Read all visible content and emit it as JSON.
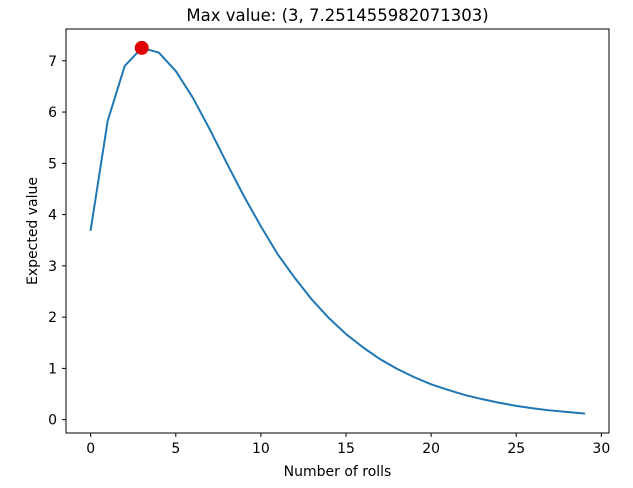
{
  "chart_data": {
    "type": "line",
    "title": "Max value: (3, 7.251455982071303)",
    "xlabel": "Number of rolls",
    "ylabel": "Expected value",
    "xlim": [
      -1.45,
      30.45
    ],
    "ylim": [
      -0.26,
      7.62
    ],
    "xticks": [
      0,
      5,
      10,
      15,
      20,
      25,
      30
    ],
    "xtick_labels": [
      "0",
      "5",
      "10",
      "15",
      "20",
      "25",
      "30"
    ],
    "yticks": [
      0,
      1,
      2,
      3,
      4,
      5,
      6,
      7
    ],
    "ytick_labels": [
      "0",
      "1",
      "2",
      "3",
      "4",
      "5",
      "6",
      "7"
    ],
    "grid": false,
    "series": [
      {
        "color": "#1f77b4",
        "x": [
          0,
          1,
          2,
          3,
          4,
          5,
          6,
          7,
          8,
          9,
          10,
          11,
          12,
          13,
          14,
          15,
          16,
          17,
          18,
          19,
          20,
          21,
          22,
          23,
          24,
          25,
          26,
          27,
          28,
          29
        ],
        "values": [
          3.7,
          5.83,
          6.9,
          7.25,
          7.16,
          6.8,
          6.28,
          5.66,
          5.0,
          4.36,
          3.77,
          3.22,
          2.76,
          2.34,
          1.98,
          1.67,
          1.41,
          1.18,
          0.99,
          0.83,
          0.69,
          0.58,
          0.48,
          0.4,
          0.33,
          0.27,
          0.22,
          0.18,
          0.15,
          0.12
        ]
      }
    ],
    "max_point": {
      "x": 3,
      "y": 7.251455982071303,
      "color": "#e00000"
    }
  }
}
